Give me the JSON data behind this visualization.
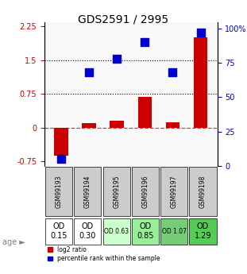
{
  "title": "GDS2591 / 2995",
  "samples": [
    "GSM99193",
    "GSM99194",
    "GSM99195",
    "GSM99196",
    "GSM99197",
    "GSM99198"
  ],
  "log2_ratio": [
    -0.62,
    0.1,
    0.15,
    0.68,
    0.12,
    2.0
  ],
  "percentile_rank": [
    5,
    68,
    78,
    90,
    68,
    97
  ],
  "age_labels": [
    "OD\n0.15",
    "OD\n0.30",
    "OD 0.63",
    "OD\n0.85",
    "OD 1.07",
    "OD\n1.29"
  ],
  "age_colors": [
    "#ffffff",
    "#ffffff",
    "#ccffcc",
    "#99ff99",
    "#66cc66",
    "#33cc33"
  ],
  "ylim_left": [
    -0.85,
    2.35
  ],
  "ylim_right": [
    0,
    105
  ],
  "yticks_left": [
    -0.75,
    0,
    0.75,
    1.5,
    2.25
  ],
  "yticks_right": [
    0,
    25,
    50,
    75,
    100
  ],
  "hlines": [
    0.75,
    1.5
  ],
  "bar_color": "#cc0000",
  "scatter_color": "#0000cc",
  "scatter_size": 60,
  "dashed_zero_color": "#cc4444",
  "bg_color": "#ffffff",
  "table_bg": "#cccccc",
  "legend_red_label": "log2 ratio",
  "legend_blue_label": "percentile rank within the sample"
}
